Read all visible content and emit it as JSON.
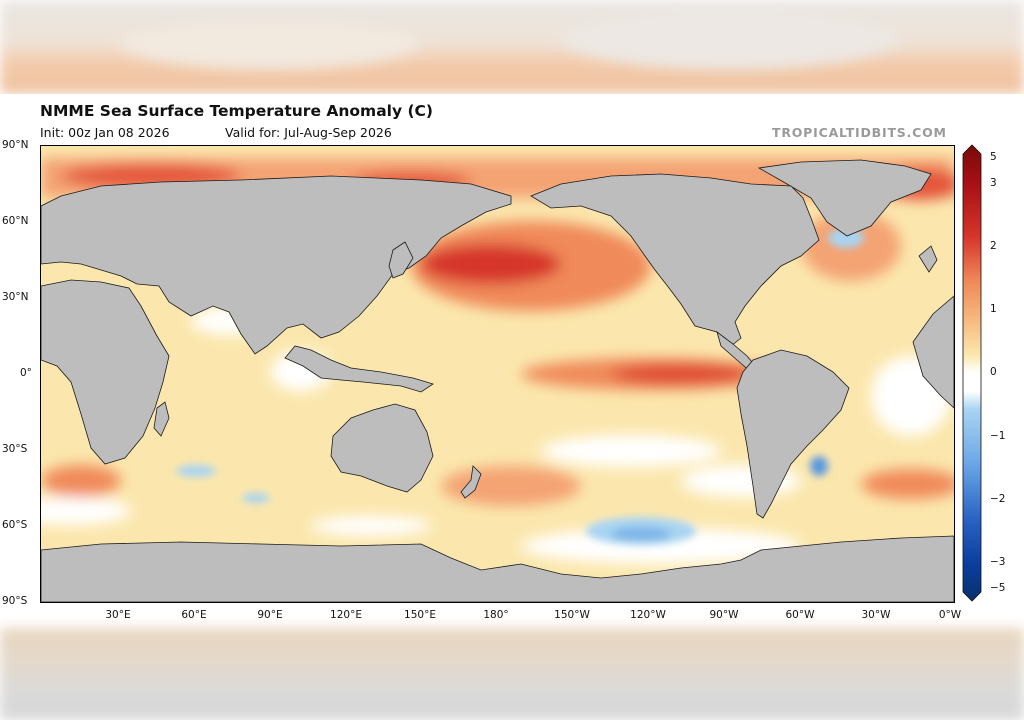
{
  "figure": {
    "title": "NMME Sea Surface Temperature Anomaly (C)",
    "init": "Init: 00z Jan 08 2026",
    "valid": "Valid for: Jul-Aug-Sep 2026",
    "credit": "TROPICALTIDBITS.COM"
  },
  "map": {
    "projection": "equirectangular",
    "center_longitude": "180°",
    "land_color": "#bdbdbd",
    "ocean_base_color": "#fbe7ad",
    "lat_labels": [
      "90°N",
      "60°N",
      "30°N",
      "0°",
      "30°S",
      "60°S",
      "90°S"
    ],
    "lon_labels": [
      "30°E",
      "60°E",
      "90°E",
      "120°E",
      "150°E",
      "180°",
      "150°W",
      "120°W",
      "90°W",
      "60°W",
      "30°W",
      "0°W"
    ]
  },
  "colorbar": {
    "ticks": [
      "5",
      "3",
      "2",
      "1",
      "0",
      "−1",
      "−2",
      "−3",
      "−5"
    ],
    "colors": {
      "max": "#67000d",
      "high": "#d6342b",
      "warm": "#f08a5a",
      "mild": "#fbe7ad",
      "neutral": "#ffffff",
      "cool": "#a9d4f2",
      "cold": "#3a7bd5",
      "min": "#08306b"
    }
  }
}
